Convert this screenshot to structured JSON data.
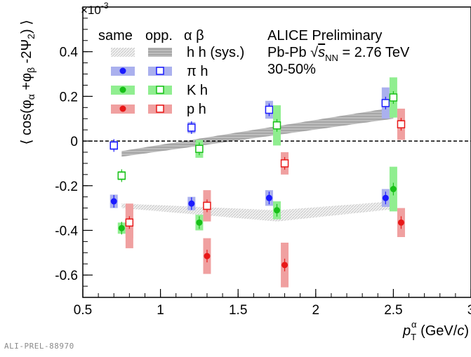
{
  "footer_label": "ALI-PREL-88970",
  "legend": {
    "col_same": "same",
    "col_opp": "opp.",
    "col_ab": "α β",
    "rows": [
      {
        "key": "hh",
        "label": "h h (sys.)"
      },
      {
        "key": "pi",
        "label": "π h"
      },
      {
        "key": "K",
        "label": "K h"
      },
      {
        "key": "p",
        "label": "p h"
      }
    ]
  },
  "info": {
    "line1": "ALICE Preliminary",
    "line2": "Pb-Pb √s_NN = 2.76 TeV",
    "line3": "30-50%"
  },
  "colors": {
    "pi": "#1a1aff",
    "pi_band": "#aab0ee",
    "K": "#18c018",
    "K_band": "#90ee90",
    "p": "#e81818",
    "p_band": "#f0a0a0",
    "hh_band": "#c8c8c8"
  },
  "chart_data": {
    "type": "scatter",
    "xlabel": "p_T^α (GeV/c)",
    "ylabel": "⟨ cos(φ_α +φ_β -2Ψ_2) ⟩",
    "y_multiplier": "×10^-3",
    "xlim": [
      0.5,
      3
    ],
    "ylim": [
      -0.7,
      0.6
    ],
    "x_ticks": [
      "0.5",
      "1",
      "1.5",
      "2",
      "2.5",
      "3"
    ],
    "y_ticks": [
      "-0.6",
      "-0.4",
      "-0.2",
      "0",
      "0.2",
      "0.4"
    ],
    "zero_line": "dashed",
    "series": [
      {
        "name": "π h",
        "key": "pi",
        "charge": "same",
        "marker": "filled-circle",
        "points": [
          {
            "x": 0.7,
            "y": -0.27,
            "sys": 0.03
          },
          {
            "x": 1.2,
            "y": -0.28,
            "sys": 0.03
          },
          {
            "x": 1.7,
            "y": -0.255,
            "sys": 0.035
          },
          {
            "x": 2.45,
            "y": -0.255,
            "sys": 0.04
          }
        ]
      },
      {
        "name": "π h",
        "key": "pi",
        "charge": "opp",
        "marker": "open-square",
        "points": [
          {
            "x": 0.7,
            "y": -0.02,
            "sys": 0.02
          },
          {
            "x": 1.2,
            "y": 0.06,
            "sys": 0.025
          },
          {
            "x": 1.7,
            "y": 0.14,
            "sys": 0.04
          },
          {
            "x": 2.45,
            "y": 0.17,
            "sys": 0.07
          }
        ]
      },
      {
        "name": "K h",
        "key": "K",
        "charge": "same",
        "marker": "filled-circle",
        "points": [
          {
            "x": 0.75,
            "y": -0.39,
            "sys": 0.025
          },
          {
            "x": 1.25,
            "y": -0.365,
            "sys": 0.035
          },
          {
            "x": 1.75,
            "y": -0.31,
            "sys": 0.04
          },
          {
            "x": 2.5,
            "y": -0.215,
            "sys": 0.1
          }
        ]
      },
      {
        "name": "K h",
        "key": "K",
        "charge": "opp",
        "marker": "open-square",
        "points": [
          {
            "x": 0.75,
            "y": -0.155,
            "sys": 0.02
          },
          {
            "x": 1.25,
            "y": -0.035,
            "sys": 0.04
          },
          {
            "x": 1.75,
            "y": 0.07,
            "sys": 0.09
          },
          {
            "x": 2.5,
            "y": 0.195,
            "sys": 0.09
          }
        ]
      },
      {
        "name": "p h",
        "key": "p",
        "charge": "same",
        "marker": "filled-circle",
        "points": [
          {
            "x": 0.8,
            "y": -0.38,
            "sys": 0.1
          },
          {
            "x": 1.3,
            "y": -0.515,
            "sys": 0.08
          },
          {
            "x": 1.8,
            "y": -0.555,
            "sys": 0.1
          },
          {
            "x": 2.55,
            "y": -0.365,
            "sys": 0.065
          }
        ]
      },
      {
        "name": "p h",
        "key": "p",
        "charge": "opp",
        "marker": "open-square",
        "points": [
          {
            "x": 0.8,
            "y": -0.365,
            "sys": 0.07
          },
          {
            "x": 1.3,
            "y": -0.29,
            "sys": 0.07
          },
          {
            "x": 1.8,
            "y": -0.1,
            "sys": 0.05
          },
          {
            "x": 2.55,
            "y": 0.075,
            "sys": 0.07
          }
        ]
      }
    ],
    "bands": [
      {
        "name": "h h (sys.)",
        "charge": "opp",
        "style": "dark-hatched",
        "lower": [
          {
            "x": 0.75,
            "y": -0.07
          },
          {
            "x": 2.5,
            "y": 0.1
          }
        ],
        "upper": [
          {
            "x": 0.75,
            "y": -0.045
          },
          {
            "x": 2.5,
            "y": 0.15
          }
        ]
      },
      {
        "name": "h h (sys.)",
        "charge": "same",
        "style": "light-hatched",
        "lower": [
          {
            "x": 0.75,
            "y": -0.3
          },
          {
            "x": 1.75,
            "y": -0.36
          },
          {
            "x": 2.5,
            "y": -0.305
          }
        ],
        "upper": [
          {
            "x": 0.75,
            "y": -0.28
          },
          {
            "x": 1.75,
            "y": -0.31
          },
          {
            "x": 2.5,
            "y": -0.27
          }
        ]
      }
    ]
  }
}
